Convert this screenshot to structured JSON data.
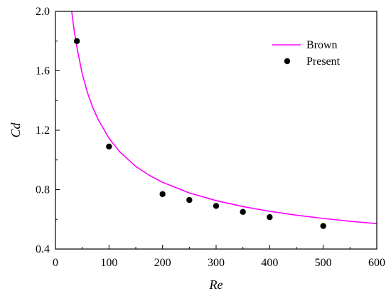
{
  "chart_data": {
    "type": "scatter",
    "title": "",
    "xlabel": "Re",
    "ylabel": "Cd",
    "xlim": [
      0,
      600
    ],
    "ylim": [
      0.4,
      2.0
    ],
    "xticks": [
      0,
      100,
      200,
      300,
      400,
      500,
      600
    ],
    "yticks": [
      0.4,
      0.8,
      1.2,
      1.6,
      2.0
    ],
    "x_tick_labels": [
      "0",
      "100",
      "200",
      "300",
      "400",
      "500",
      "600"
    ],
    "y_tick_labels": [
      "0.4",
      "0.8",
      "1.2",
      "1.6",
      "2.0"
    ],
    "legend_position": "top-right",
    "grid": false,
    "series": [
      {
        "name": "Brown",
        "kind": "line",
        "color": "#ff00ff",
        "x": [
          30,
          35,
          40,
          50,
          60,
          70,
          80,
          100,
          120,
          150,
          175,
          200,
          250,
          300,
          350,
          400,
          450,
          500,
          550,
          600
        ],
        "y": [
          2.01,
          1.87,
          1.76,
          1.58,
          1.45,
          1.35,
          1.27,
          1.146,
          1.055,
          0.956,
          0.897,
          0.849,
          0.778,
          0.726,
          0.686,
          0.654,
          0.628,
          0.606,
          0.587,
          0.571
        ]
      },
      {
        "name": "Present",
        "kind": "scatter",
        "color": "#000000",
        "x": [
          40,
          100,
          200,
          250,
          300,
          350,
          400,
          500
        ],
        "y": [
          1.8,
          1.09,
          0.77,
          0.73,
          0.69,
          0.65,
          0.615,
          0.555
        ]
      }
    ]
  }
}
